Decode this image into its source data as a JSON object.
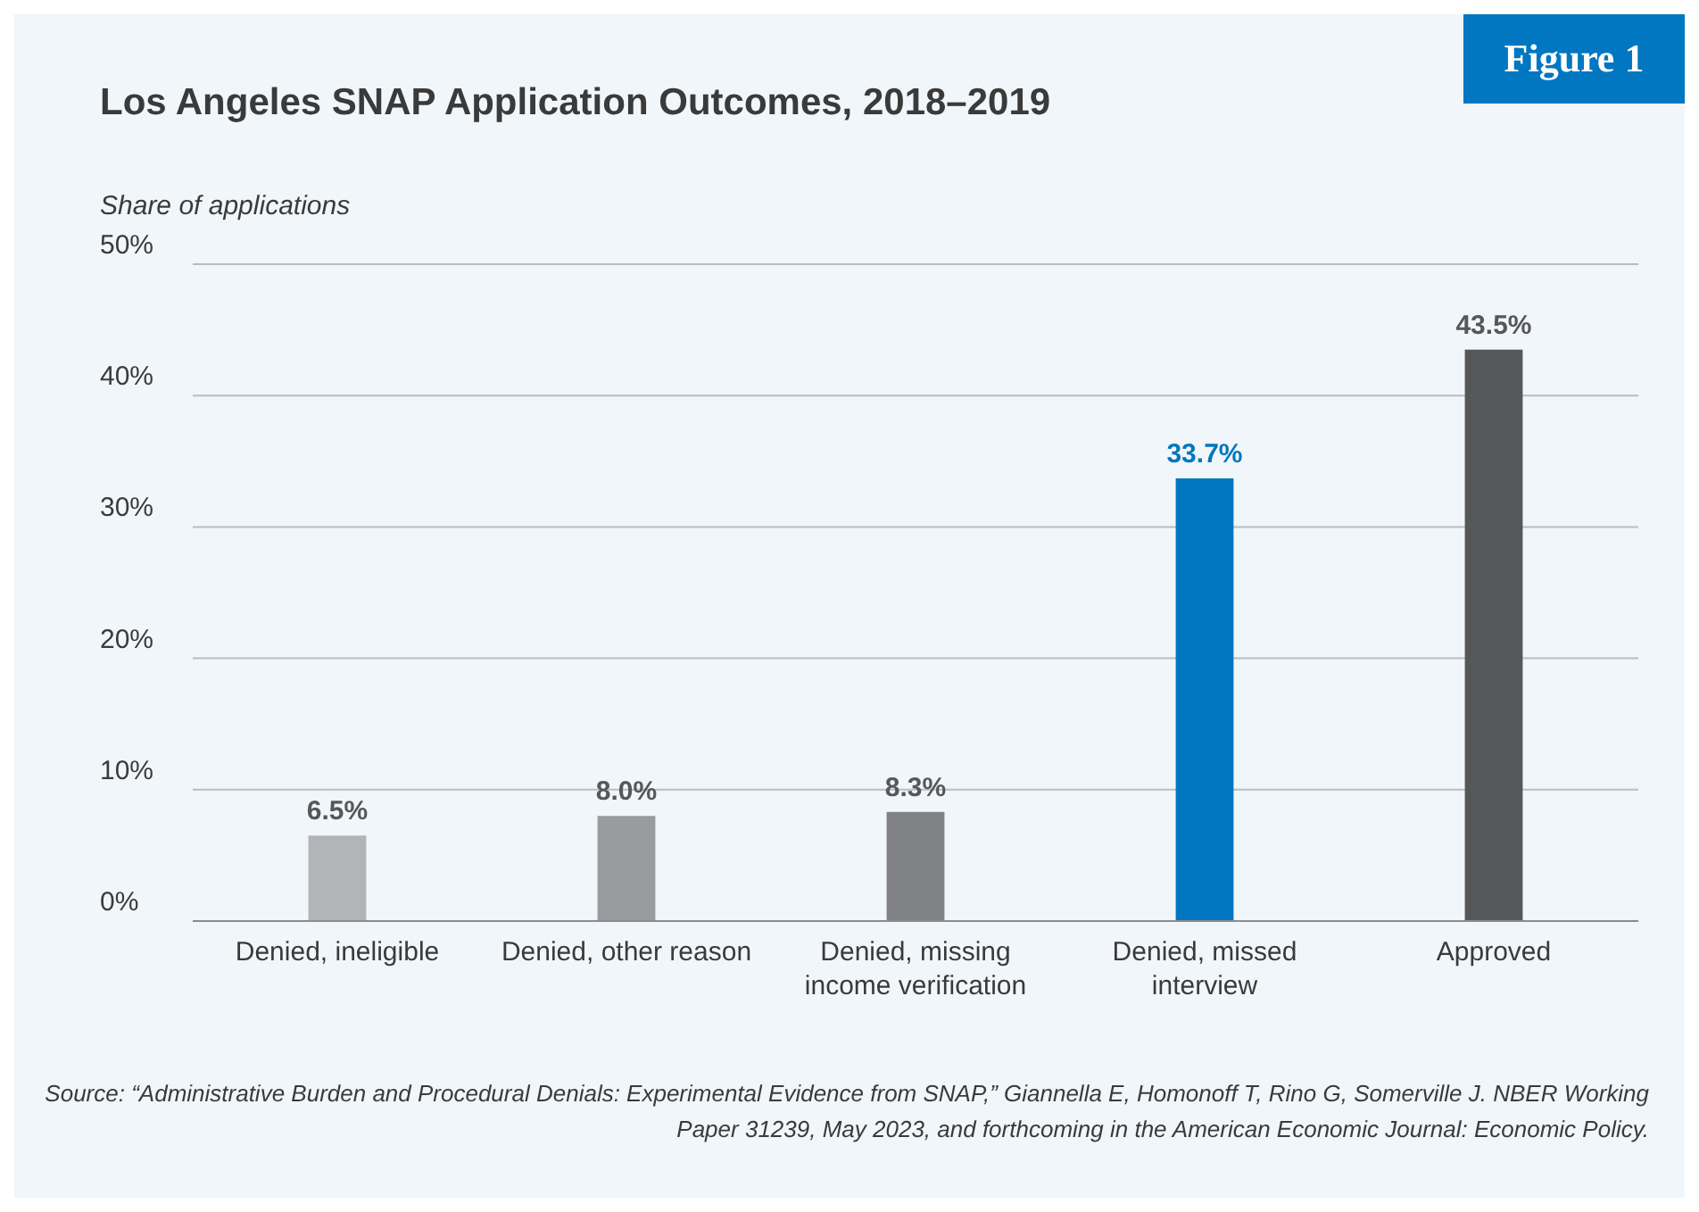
{
  "chart_data": {
    "type": "bar",
    "title": "Los Angeles SNAP Application Outcomes, 2018–2019",
    "ylabel": "Share of applications",
    "categories": [
      "Denied, ineligible",
      "Denied, other reason",
      "Denied, missing income verification",
      "Denied, missed interview",
      "Approved"
    ],
    "values": [
      6.5,
      8.0,
      8.3,
      33.7,
      43.5
    ],
    "colors": [
      "#b2b4b7",
      "#999b9e",
      "#808285",
      "#0077c0",
      "#555759"
    ],
    "value_labels": [
      "6.5%",
      "8.0%",
      "8.3%",
      "33.7%",
      "43.5%"
    ],
    "ylim": [
      0,
      50
    ],
    "yticks": [
      {
        "value": 0,
        "label": "0%"
      },
      {
        "value": 10,
        "label": "10%"
      },
      {
        "value": 20,
        "label": "20%"
      },
      {
        "value": 30,
        "label": "30%"
      },
      {
        "value": 40,
        "label": "40%"
      },
      {
        "value": 50,
        "label": "50%"
      }
    ],
    "grid": "y",
    "legend": false,
    "annotations": [
      "Figure 1",
      "Source: “Administrative Burden and Procedural Denials: Experimental Evidence from SNAP,” Giannella E, Homonoff T, Rino G, Somerville J. NBER Working Paper 31239, May 2023, and forthcoming in the American Economic Journal: Economic Policy."
    ]
  }
}
